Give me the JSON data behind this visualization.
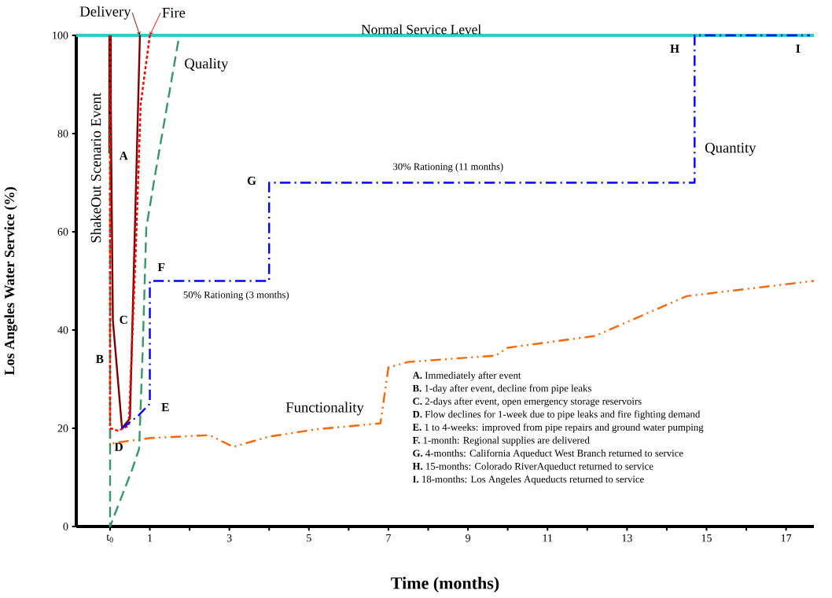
{
  "chart_data": {
    "type": "line",
    "xlabel": "Time (months)",
    "ylabel": "Los Angeles Water Service (%)",
    "xlim": [
      -0.85,
      17.7
    ],
    "ylim": [
      0,
      100
    ],
    "xticks": [
      {
        "value": 0,
        "label": "t$_{0}$"
      },
      1,
      {
        "value": 2,
        "label": null
      },
      3,
      {
        "value": 4,
        "label": null
      },
      5,
      {
        "value": 6,
        "label": null
      },
      7,
      {
        "value": 8,
        "label": null
      },
      9,
      {
        "value": 10,
        "label": null
      },
      11,
      {
        "value": 12,
        "label": null
      },
      13,
      {
        "value": 14,
        "label": null
      },
      15,
      {
        "value": 16,
        "label": null
      },
      17
    ],
    "yticks": [
      0,
      20,
      40,
      60,
      80,
      100
    ],
    "ref_lines": [
      {
        "axis": "y",
        "value": 100,
        "label": "Normal Service Level",
        "color": "#33cccc"
      }
    ],
    "series": [
      {
        "name": "ShakeOut Scenario Event",
        "color": "#000000",
        "line_style": "solid",
        "x": [
          0,
          0
        ],
        "values": [
          100,
          76
        ]
      },
      {
        "name": "Functionality",
        "color": "#ff6600",
        "line_style": "dashdotdot",
        "x": [
          0,
          0,
          0.1,
          1,
          2.5,
          3.1,
          4,
          5.2,
          6.8,
          7,
          7.5,
          9.7,
          10,
          12.2,
          14.5,
          17.7
        ],
        "values": [
          100,
          16.5,
          17,
          18,
          18.6,
          16.2,
          18.3,
          19.8,
          21,
          32.4,
          33.5,
          34.8,
          36.4,
          38.8,
          46.9,
          50
        ]
      },
      {
        "name": "Quality",
        "color": "#339966",
        "line_style": "dashed",
        "x": [
          0,
          0,
          0.55,
          0.73,
          0.82,
          0.91,
          1.13,
          1.74
        ],
        "values": [
          100,
          0,
          11.5,
          15.8,
          35.8,
          60.8,
          71.5,
          100
        ]
      },
      {
        "name": "Delivery",
        "color": "#800000",
        "line_style": "solid",
        "x": [
          0,
          0.07,
          0.3,
          0.5,
          0.75
        ],
        "values": [
          100,
          42,
          20,
          22,
          100
        ]
      },
      {
        "name": "Fire",
        "color": "#ff0000",
        "line_style": "dotted",
        "x": [
          0,
          0,
          0.2,
          0.47,
          0.65,
          0.77,
          1.0
        ],
        "values": [
          100,
          20,
          19.5,
          20.5,
          57,
          86,
          100
        ]
      },
      {
        "name": "Quantity",
        "color": "#0000ff",
        "line_style": "dashdot",
        "x": [
          0.3,
          0.7,
          1,
          1,
          4,
          4,
          14.7,
          14.7,
          17.6
        ],
        "values": [
          20,
          22.5,
          25,
          50,
          50,
          70,
          70,
          100,
          100
        ]
      }
    ],
    "annotations": [
      "A",
      "B",
      "C",
      "D",
      "E",
      "F",
      "G",
      "H",
      "I",
      "30% Rationing (11 months)",
      "50% Rationing (3 months)",
      "**A.** Immediately after event",
      "**B.** 1-day after event, decline from pipe leaks",
      "**C.** 2-days after event, open emergency storage reservoirs",
      "**D.** Flow declines for 1-week due to pipe leaks and fire fighting demand",
      "**E.** 1 to 4-weeks: improved from pipe repairs and ground water pumping",
      "**F.** 1-month: Regional supplies are delivered",
      "**G.** 4-months: California Aqueduct West Branch returned to service",
      "**H.** 15-months: Colorado RiverAqueduct returned to service",
      "**I.** 18-months: Los Angeles Aqueducts returned to service"
    ]
  }
}
